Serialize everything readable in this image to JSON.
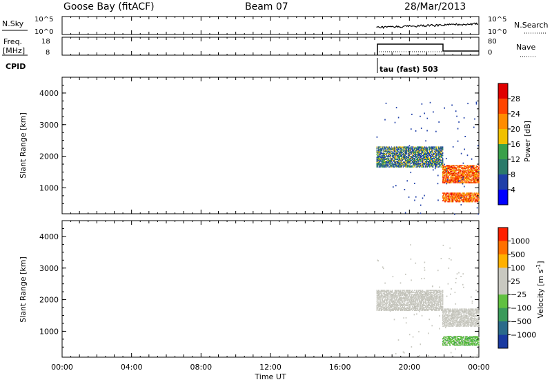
{
  "header": {
    "station": "Goose Bay (fitACF)",
    "beam": "Beam 07",
    "date": "28/Mar/2013"
  },
  "aux_panels": {
    "nsky_label": "N.Sky",
    "nsky_ticks": [
      "10^5",
      "10^0"
    ],
    "nsearch_label": "N.Search",
    "nsearch_ticks": [
      "10^5",
      "10^0"
    ],
    "freq_label_1": "Freq.",
    "freq_label_2": "[MHz]",
    "freq_ticks": [
      "18",
      "8"
    ],
    "nave_label": "Nave",
    "nave_ticks": [
      "80",
      "0"
    ],
    "cpid_label": "CPID",
    "cpid_text": "tau (fast) 503"
  },
  "chart_data": [
    {
      "type": "heatmap",
      "name_label": "Power [dB]",
      "ylabel": "Slant Range [km]",
      "xlabel": "",
      "ylim": [
        180,
        4500
      ],
      "yticks": [
        "1000",
        "2000",
        "3000",
        "4000"
      ],
      "xlim_hours": [
        0,
        24
      ],
      "colorbar": {
        "label": "Power [dB]",
        "ticks": [
          "4",
          "8",
          "12",
          "16",
          "20",
          "24",
          "28"
        ],
        "colors": [
          "#0000ff",
          "#1f3fa8",
          "#2b7a6a",
          "#3aa04a",
          "#f0c000",
          "#ff8c00",
          "#ff4500",
          "#e00000"
        ]
      },
      "echo_regions": [
        {
          "t_start": 18.1,
          "t_end": 21.9,
          "r_min": 1650,
          "r_max": 2300,
          "level": "blue-green"
        },
        {
          "t_start": 21.9,
          "t_end": 24.0,
          "r_min": 1150,
          "r_max": 1700,
          "level": "orange-red"
        },
        {
          "t_start": 21.9,
          "t_end": 24.0,
          "r_min": 550,
          "r_max": 850,
          "level": "orange-red"
        }
      ]
    },
    {
      "type": "heatmap",
      "name_label": "Velocity [m s^-1]",
      "ylabel": "Slant Range [km]",
      "xlabel": "Time UT",
      "ylim": [
        180,
        4500
      ],
      "yticks": [
        "1000",
        "2000",
        "3000",
        "4000"
      ],
      "xticks": [
        "00:00",
        "04:00",
        "08:00",
        "12:00",
        "16:00",
        "20:00",
        "00:00"
      ],
      "colorbar": {
        "label": "Velocity [m s",
        "label_sup": "-1",
        "label_end": "]",
        "ticks": [
          "1000",
          "500",
          "100",
          "25",
          "−25",
          "−100",
          "−500",
          "−1000"
        ],
        "colors": [
          "#1a3aa0",
          "#2a6a8a",
          "#3a9a5a",
          "#60c040",
          "#c8c8c0",
          "#c8c8c0",
          "#ffb000",
          "#ff7000",
          "#ff2000"
        ]
      },
      "echo_regions": [
        {
          "t_start": 18.1,
          "t_end": 21.9,
          "r_min": 1650,
          "r_max": 2300,
          "level": "grey"
        },
        {
          "t_start": 21.9,
          "t_end": 24.0,
          "r_min": 1150,
          "r_max": 1700,
          "level": "grey"
        },
        {
          "t_start": 21.9,
          "t_end": 24.0,
          "r_min": 550,
          "r_max": 850,
          "level": "green"
        }
      ]
    }
  ]
}
